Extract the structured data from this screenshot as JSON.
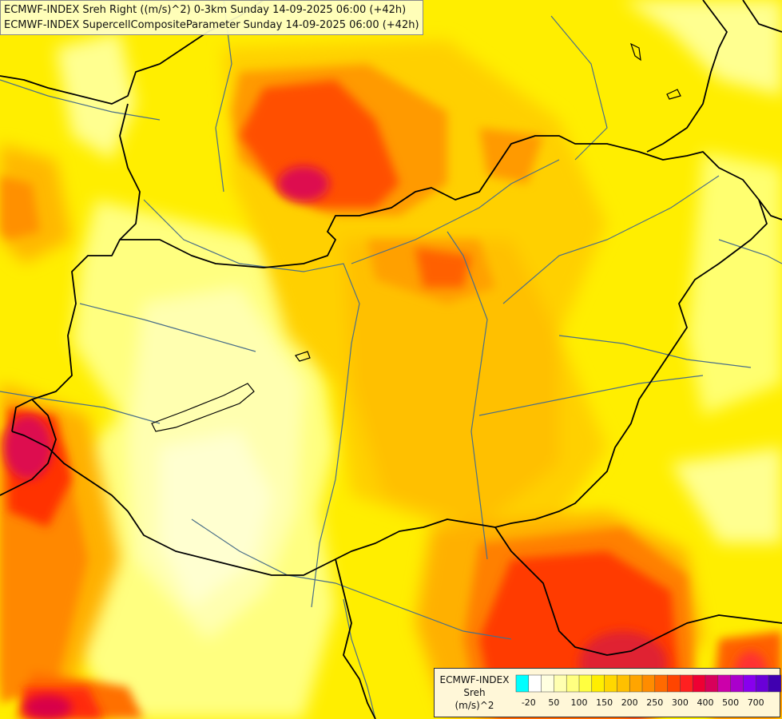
{
  "titles": {
    "line1": "ECMWF-INDEX Sreh Right ((m/s)^2) 0-3km Sunday 14-09-2025 06:00 (+42h)",
    "line2": "ECMWF-INDEX SupercellCompositeParameter Sunday 14-09-2025 06:00 (+42h)"
  },
  "legend": {
    "source": "ECMWF-INDEX",
    "variable": "Sreh",
    "unit": "(m/s)^2",
    "colors": [
      "#00ffff",
      "#ffffff",
      "#ffffe0",
      "#ffffb0",
      "#ffff80",
      "#ffff40",
      "#ffee00",
      "#ffd700",
      "#ffc000",
      "#ffa500",
      "#ff8c00",
      "#ff6a00",
      "#ff4500",
      "#ff2020",
      "#ee0033",
      "#d8005a",
      "#cc00aa",
      "#aa00cc",
      "#8800ee",
      "#6a00d8",
      "#4000b0",
      "#000088"
    ],
    "tick_labels": [
      "-20",
      "50",
      "100",
      "150",
      "200",
      "250",
      "300",
      "400",
      "500",
      "700"
    ]
  },
  "colors": {
    "low": "#ffffb0",
    "mid": "#ffd700",
    "high": "#ff8c00",
    "max": "#ff2020",
    "peak": "#d8005a",
    "border": "#000000",
    "river": "#4a6f88"
  }
}
